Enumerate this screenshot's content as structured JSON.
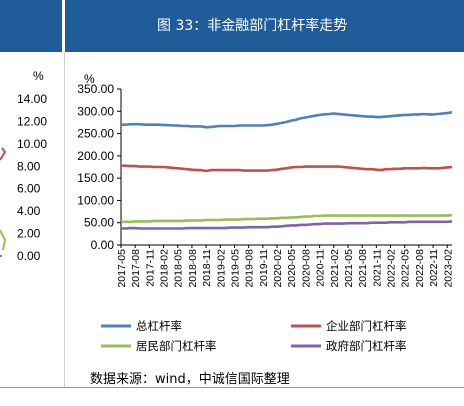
{
  "header": {
    "title": "图 33：非金融部门杠杆率走势"
  },
  "left_chart": {
    "unit": "%",
    "y_ticks": [
      "14.00",
      "12.00",
      "10.00",
      "8.00",
      "6.00",
      "4.00",
      "2.00",
      "0.00"
    ]
  },
  "chart_data": {
    "type": "line",
    "title": "图 33：非金融部门杠杆率走势",
    "ylabel": "%",
    "xlabel": "",
    "ylim": [
      0,
      350
    ],
    "y_ticks": [
      "0.00",
      "50.00",
      "100.00",
      "150.00",
      "200.00",
      "250.00",
      "300.00",
      "350.00"
    ],
    "grid": false,
    "legend_position": "bottom",
    "x": [
      "2017-05",
      "2017-06",
      "2017-07",
      "2017-08",
      "2017-09",
      "2017-10",
      "2017-11",
      "2017-12",
      "2018-01",
      "2018-02",
      "2018-03",
      "2018-04",
      "2018-05",
      "2018-06",
      "2018-07",
      "2018-08",
      "2018-09",
      "2018-10",
      "2018-11",
      "2018-12",
      "2019-01",
      "2019-02",
      "2019-03",
      "2019-04",
      "2019-05",
      "2019-06",
      "2019-07",
      "2019-08",
      "2019-09",
      "2019-10",
      "2019-11",
      "2019-12",
      "2020-01",
      "2020-02",
      "2020-03",
      "2020-04",
      "2020-05",
      "2020-06",
      "2020-07",
      "2020-08",
      "2020-09",
      "2020-10",
      "2020-11",
      "2020-12",
      "2021-01",
      "2021-02",
      "2021-03",
      "2021-04",
      "2021-05",
      "2021-06",
      "2021-07",
      "2021-08",
      "2021-09",
      "2021-10",
      "2021-11",
      "2021-12",
      "2022-01",
      "2022-02",
      "2022-03",
      "2022-04",
      "2022-05",
      "2022-06",
      "2022-07",
      "2022-08",
      "2022-09",
      "2022-10",
      "2022-11",
      "2022-12",
      "2023-01",
      "2023-02",
      "2023-03"
    ],
    "x_tick_labels": [
      "2017-05",
      "2017-08",
      "2017-11",
      "2018-02",
      "2018-05",
      "2018-08",
      "2018-11",
      "2019-02",
      "2019-05",
      "2019-08",
      "2019-11",
      "2020-02",
      "2020-05",
      "2020-08",
      "2020-11",
      "2021-02",
      "2021-05",
      "2021-08",
      "2021-11",
      "2022-02",
      "2022-05",
      "2022-08",
      "2022-11",
      "2023-02"
    ],
    "series": [
      {
        "name": "总杠杆率",
        "color": "#4f81bd",
        "values": [
          270,
          270,
          271,
          271,
          271,
          270,
          270,
          270,
          270,
          269,
          269,
          268,
          268,
          267,
          267,
          266,
          266,
          266,
          264,
          265,
          266,
          267,
          267,
          267,
          267,
          268,
          268,
          268,
          268,
          268,
          268,
          269,
          270,
          272,
          274,
          276,
          279,
          281,
          284,
          286,
          288,
          290,
          292,
          293,
          294,
          295,
          294,
          293,
          292,
          291,
          290,
          289,
          288,
          288,
          287,
          287,
          288,
          289,
          290,
          291,
          292,
          292,
          293,
          293,
          294,
          293,
          293,
          294,
          295,
          296,
          298
        ]
      },
      {
        "name": "企业部门杠杆率",
        "color": "#c0504d",
        "values": [
          178,
          178,
          177,
          177,
          176,
          176,
          176,
          175,
          175,
          175,
          174,
          173,
          172,
          171,
          170,
          169,
          168,
          168,
          166,
          168,
          168,
          168,
          168,
          168,
          168,
          168,
          167,
          167,
          167,
          167,
          167,
          167,
          168,
          169,
          171,
          172,
          174,
          175,
          175,
          176,
          176,
          176,
          176,
          176,
          176,
          176,
          176,
          175,
          174,
          173,
          172,
          171,
          170,
          170,
          169,
          168,
          170,
          170,
          171,
          171,
          172,
          172,
          172,
          172,
          173,
          172,
          172,
          172,
          173,
          174,
          175
        ]
      },
      {
        "name": "居民部门杠杆率",
        "color": "#9bbb59",
        "values": [
          52,
          52,
          52,
          53,
          53,
          53,
          53,
          54,
          54,
          54,
          54,
          54,
          54,
          54,
          55,
          55,
          55,
          55,
          56,
          56,
          56,
          56,
          57,
          57,
          57,
          57,
          58,
          58,
          58,
          59,
          59,
          59,
          60,
          60,
          61,
          61,
          62,
          62,
          63,
          64,
          64,
          65,
          65,
          66,
          66,
          66,
          66,
          66,
          66,
          66,
          66,
          66,
          66,
          66,
          66,
          66,
          66,
          66,
          66,
          66,
          66,
          66,
          66,
          66,
          66,
          66,
          66,
          66,
          66,
          66,
          67
        ]
      },
      {
        "name": "政府部门杠杆率",
        "color": "#8064a2",
        "values": [
          37,
          37,
          38,
          38,
          37,
          37,
          37,
          37,
          37,
          37,
          37,
          37,
          37,
          37,
          38,
          38,
          38,
          38,
          38,
          38,
          38,
          38,
          38,
          39,
          39,
          39,
          39,
          40,
          40,
          40,
          40,
          40,
          41,
          41,
          42,
          43,
          44,
          44,
          45,
          45,
          46,
          47,
          47,
          48,
          48,
          48,
          48,
          48,
          49,
          49,
          49,
          49,
          49,
          50,
          50,
          50,
          50,
          51,
          51,
          51,
          51,
          52,
          52,
          52,
          52,
          52,
          52,
          52,
          52,
          52,
          53
        ]
      }
    ]
  },
  "footer": {
    "source": "数据来源：wind，中诚信国际整理"
  }
}
